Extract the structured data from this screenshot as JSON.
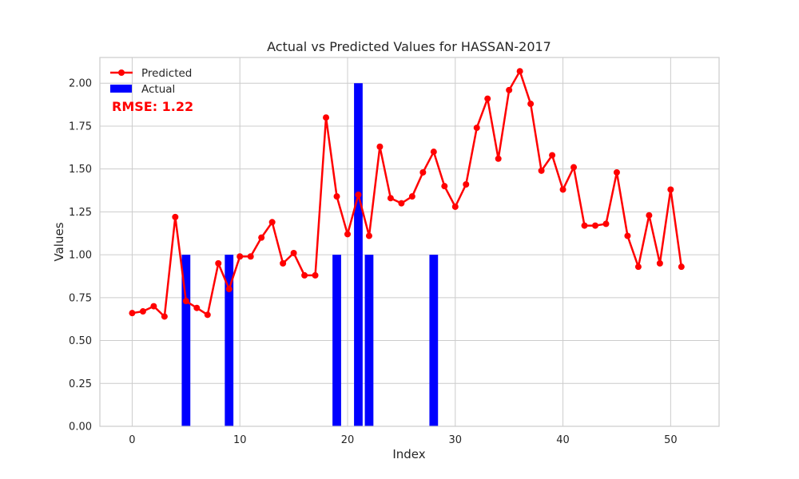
{
  "chart_data": {
    "type": "bar+line",
    "title": "Actual vs Predicted Values for HASSAN-2017",
    "xlabel": "Index",
    "ylabel": "Values",
    "xlim": [
      -3,
      54.5
    ],
    "ylim": [
      0,
      2.15
    ],
    "xticks": [
      0,
      10,
      20,
      30,
      40,
      50
    ],
    "yticks": [
      0.0,
      0.25,
      0.5,
      0.75,
      1.0,
      1.25,
      1.5,
      1.75,
      2.0
    ],
    "ytick_labels": [
      "0.00",
      "0.25",
      "0.50",
      "0.75",
      "1.00",
      "1.25",
      "1.50",
      "1.75",
      "2.00"
    ],
    "grid": true,
    "legend_position": "upper-left",
    "annotation": {
      "text": "RMSE: 1.22",
      "color": "#ff0000"
    },
    "series": [
      {
        "name": "Predicted",
        "kind": "line",
        "color": "#ff0000",
        "x": [
          0,
          1,
          2,
          3,
          4,
          5,
          6,
          7,
          8,
          9,
          10,
          11,
          12,
          13,
          14,
          15,
          16,
          17,
          18,
          19,
          20,
          21,
          22,
          23,
          24,
          25,
          26,
          27,
          28,
          29,
          30,
          31,
          32,
          33,
          34,
          35,
          36,
          37,
          38,
          39,
          40,
          41,
          42,
          43,
          44,
          45,
          46,
          47,
          48,
          49,
          50,
          51
        ],
        "values": [
          0.66,
          0.67,
          0.7,
          0.64,
          1.22,
          0.73,
          0.69,
          0.65,
          0.95,
          0.8,
          0.99,
          0.99,
          1.1,
          1.19,
          0.95,
          1.01,
          0.88,
          0.88,
          1.8,
          1.34,
          1.12,
          1.35,
          1.11,
          1.63,
          1.33,
          1.3,
          1.34,
          1.48,
          1.6,
          1.4,
          1.28,
          1.41,
          1.74,
          1.91,
          1.56,
          1.96,
          2.07,
          1.88,
          1.49,
          1.58,
          1.38,
          1.51,
          1.17,
          1.17,
          1.18,
          1.48,
          1.11,
          0.93,
          1.23,
          0.95,
          1.38,
          0.93
        ]
      },
      {
        "name": "Actual",
        "kind": "bar",
        "color": "#0000ff",
        "x": [
          0,
          1,
          2,
          3,
          4,
          5,
          6,
          7,
          8,
          9,
          10,
          11,
          12,
          13,
          14,
          15,
          16,
          17,
          18,
          19,
          20,
          21,
          22,
          23,
          24,
          25,
          26,
          27,
          28,
          29,
          30,
          31,
          32,
          33,
          34,
          35,
          36,
          37,
          38,
          39,
          40,
          41,
          42,
          43,
          44,
          45,
          46,
          47,
          48,
          49,
          50,
          51
        ],
        "values": [
          0,
          0,
          0,
          0,
          0,
          1,
          0,
          0,
          0,
          1,
          0,
          0,
          0,
          0,
          0,
          0,
          0,
          0,
          0,
          1,
          0,
          2,
          1,
          0,
          0,
          0,
          0,
          0,
          1,
          0,
          0,
          0,
          0,
          0,
          0,
          0,
          0,
          0,
          0,
          0,
          0,
          0,
          0,
          0,
          0,
          0,
          0,
          0,
          0,
          0,
          0,
          0
        ]
      }
    ]
  }
}
